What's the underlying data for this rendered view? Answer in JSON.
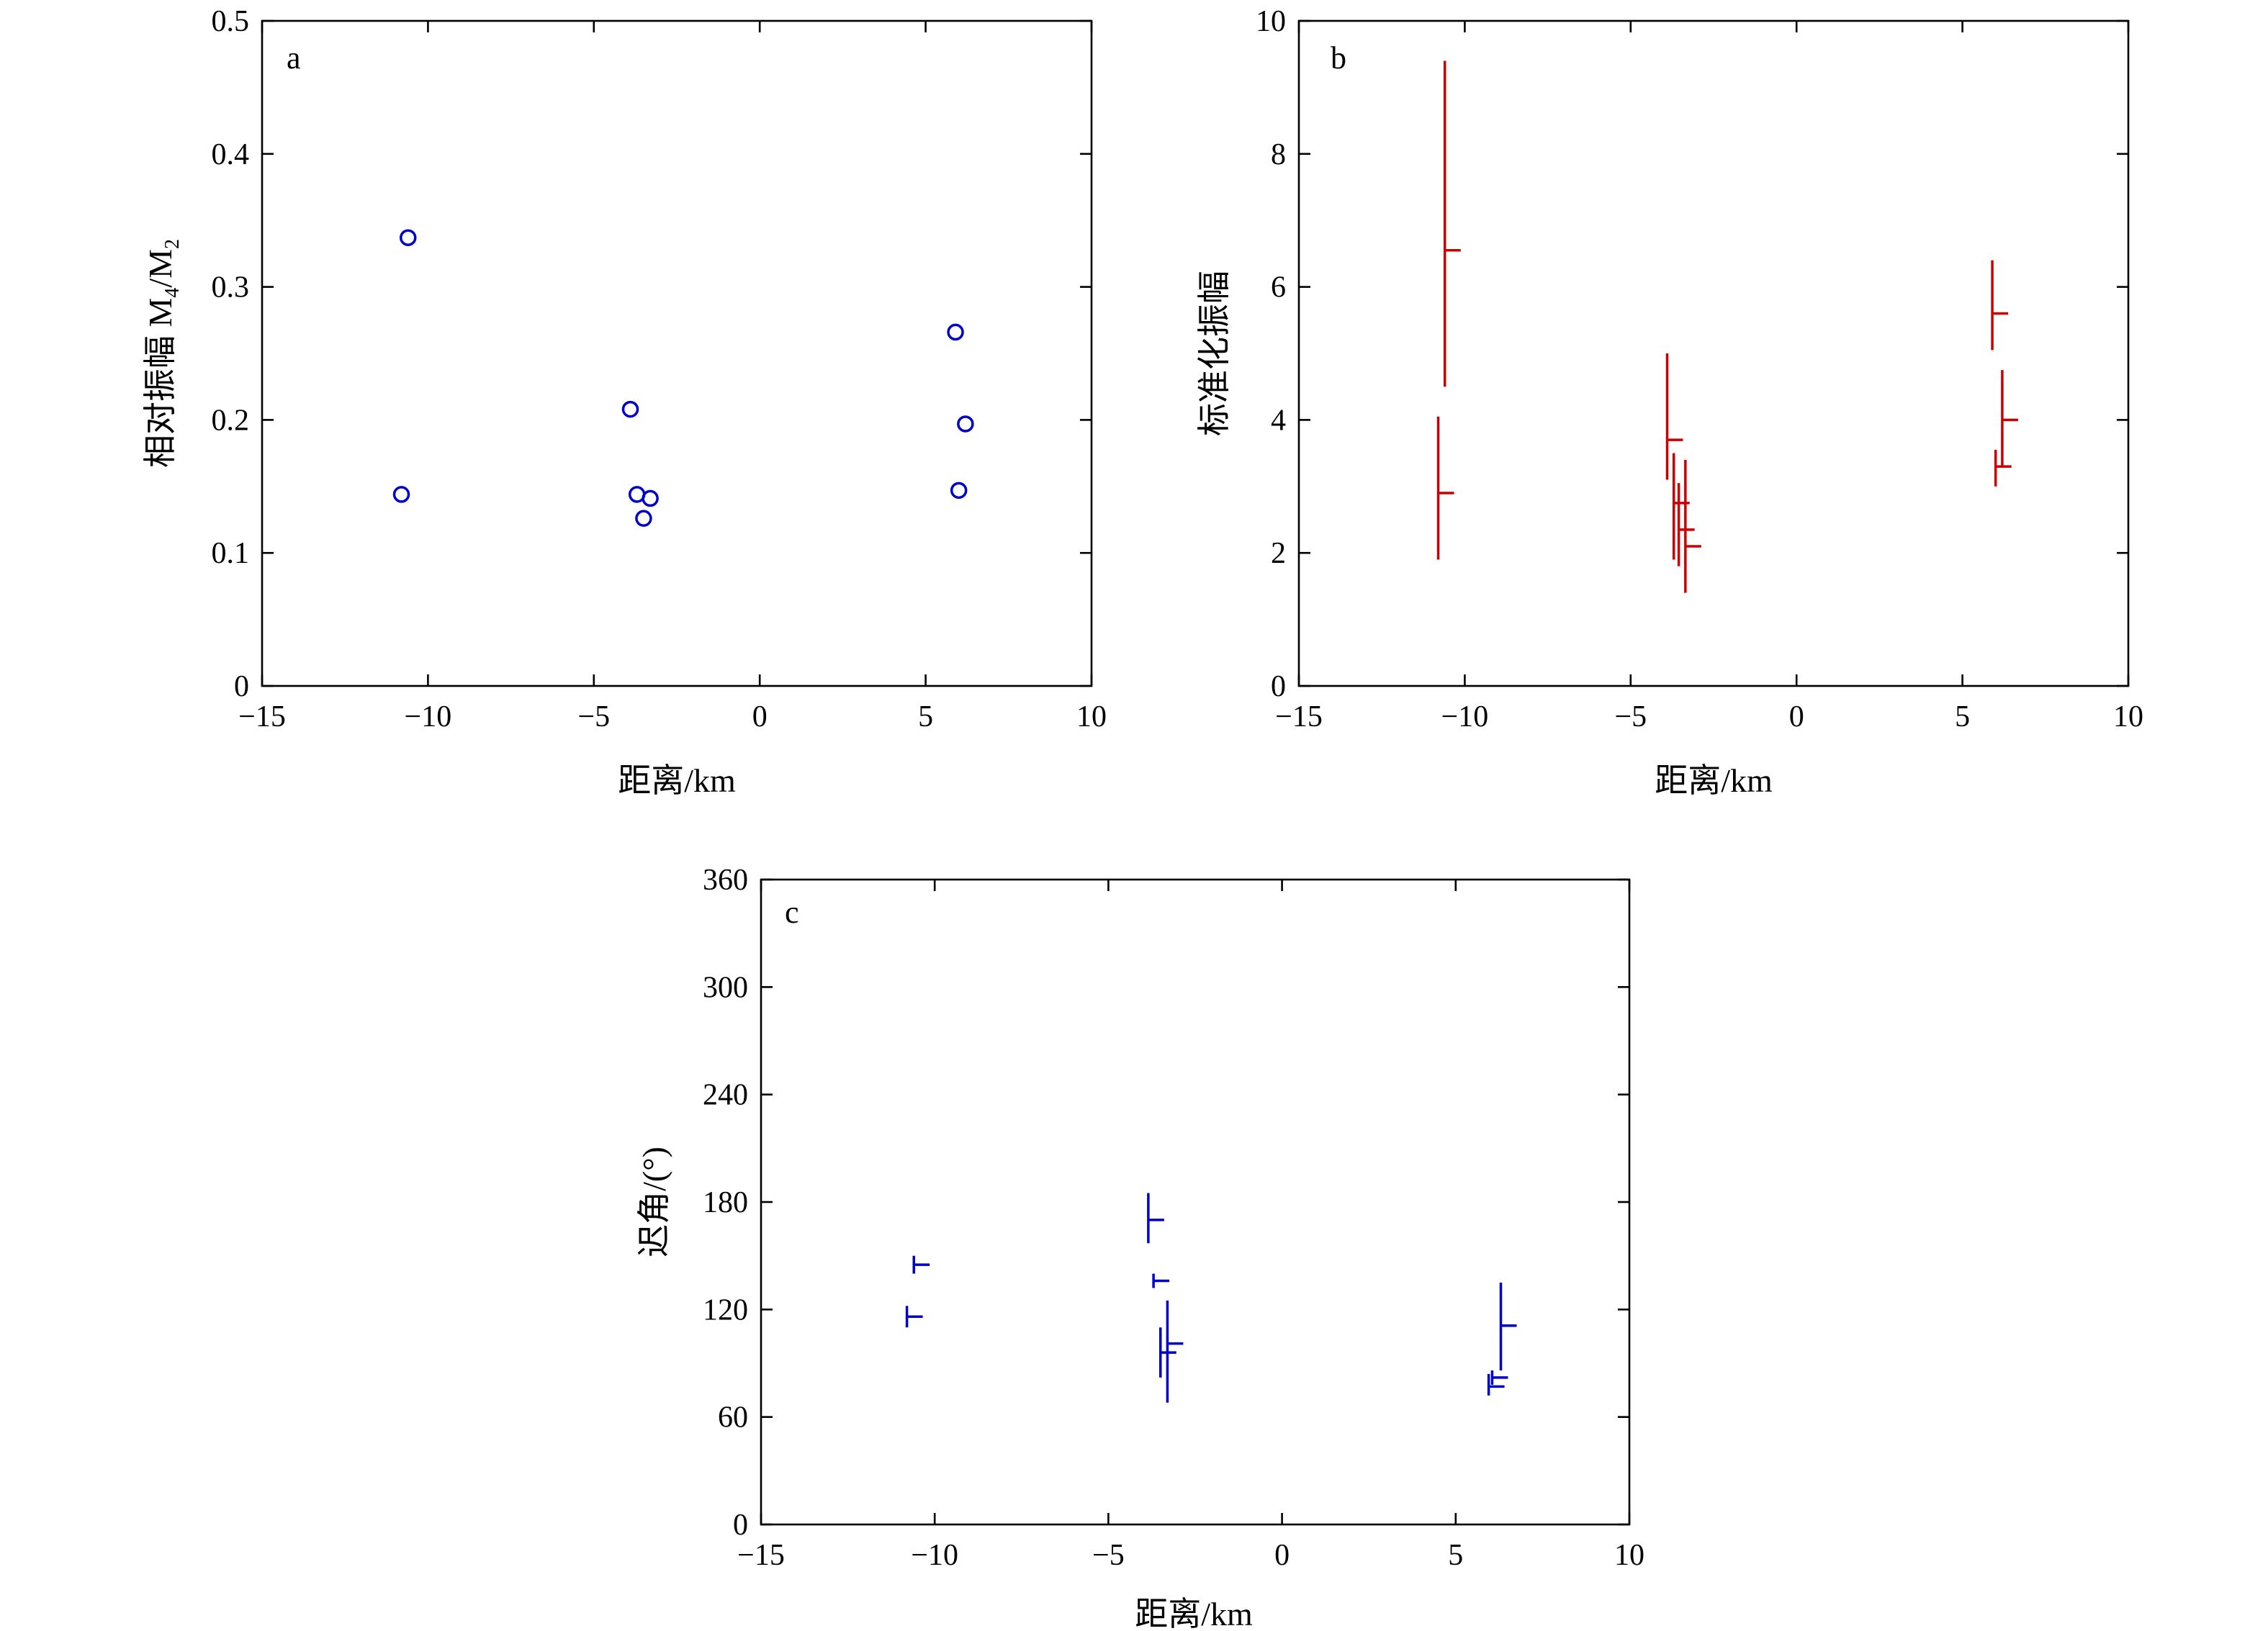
{
  "chart_data": [
    {
      "panel": "a",
      "type": "scatter",
      "xlabel": "距离/km",
      "ylabel_parts": [
        "相对振幅 M",
        "4",
        "/M",
        "2"
      ],
      "xlim": [
        -15,
        10
      ],
      "ylim": [
        0,
        0.5
      ],
      "xticks": [
        -15,
        -10,
        -5,
        0,
        5,
        10
      ],
      "xtick_labels": [
        "−15",
        "−10",
        "−5",
        "0",
        "5",
        "10"
      ],
      "yticks": [
        0,
        0.1,
        0.2,
        0.3,
        0.4,
        0.5
      ],
      "ytick_labels": [
        "0",
        "0.1",
        "0.2",
        "0.3",
        "0.4",
        "0.5"
      ],
      "marker": "circle",
      "color": "#0000cc",
      "points": [
        {
          "x": -10.6,
          "y": 0.337
        },
        {
          "x": -10.8,
          "y": 0.144
        },
        {
          "x": -3.9,
          "y": 0.208
        },
        {
          "x": -3.7,
          "y": 0.144
        },
        {
          "x": -3.3,
          "y": 0.141
        },
        {
          "x": -3.5,
          "y": 0.126
        },
        {
          "x": 5.9,
          "y": 0.266
        },
        {
          "x": 6.2,
          "y": 0.197
        },
        {
          "x": 6.0,
          "y": 0.147
        }
      ]
    },
    {
      "panel": "b",
      "type": "errorbar",
      "xlabel": "距离/km",
      "ylabel": "标准化振幅",
      "xlim": [
        -15,
        10
      ],
      "ylim": [
        0,
        10
      ],
      "xticks": [
        -15,
        -10,
        -5,
        0,
        5,
        10
      ],
      "xtick_labels": [
        "−15",
        "−10",
        "−5",
        "0",
        "5",
        "10"
      ],
      "yticks": [
        0,
        2,
        4,
        6,
        8,
        10
      ],
      "ytick_labels": [
        "0",
        "2",
        "4",
        "6",
        "8",
        "10"
      ],
      "color": "#cc0000",
      "points": [
        {
          "x": -10.6,
          "y": 6.55,
          "low": 4.5,
          "high": 9.4
        },
        {
          "x": -10.8,
          "y": 2.9,
          "low": 1.9,
          "high": 4.05
        },
        {
          "x": -3.9,
          "y": 3.7,
          "low": 3.1,
          "high": 5.0
        },
        {
          "x": -3.7,
          "y": 2.75,
          "low": 1.9,
          "high": 3.5
        },
        {
          "x": -3.55,
          "y": 2.35,
          "low": 1.8,
          "high": 3.05
        },
        {
          "x": -3.35,
          "y": 2.1,
          "low": 1.4,
          "high": 3.4
        },
        {
          "x": 5.9,
          "y": 5.6,
          "low": 5.05,
          "high": 6.4
        },
        {
          "x": 6.2,
          "y": 4.0,
          "low": 3.3,
          "high": 4.75
        },
        {
          "x": 6.0,
          "y": 3.3,
          "low": 3.0,
          "high": 3.55
        }
      ]
    },
    {
      "panel": "c",
      "type": "errorbar",
      "xlabel": "距离/km",
      "ylabel": "迟角/(°)",
      "xlim": [
        -15,
        10
      ],
      "ylim": [
        0,
        360
      ],
      "xticks": [
        -15,
        -10,
        -5,
        0,
        5,
        10
      ],
      "xtick_labels": [
        "−15",
        "−10",
        "−5",
        "0",
        "5",
        "10"
      ],
      "yticks": [
        0,
        60,
        120,
        180,
        240,
        300,
        360
      ],
      "ytick_labels": [
        "0",
        "60",
        "120",
        "180",
        "240",
        "300",
        "360"
      ],
      "color": "#0000cc",
      "points": [
        {
          "x": -10.6,
          "y": 145,
          "low": 140,
          "high": 150
        },
        {
          "x": -10.8,
          "y": 116,
          "low": 110,
          "high": 122
        },
        {
          "x": -3.85,
          "y": 170,
          "low": 157,
          "high": 185
        },
        {
          "x": -3.7,
          "y": 136,
          "low": 132,
          "high": 140
        },
        {
          "x": -3.5,
          "y": 96,
          "low": 82,
          "high": 110
        },
        {
          "x": -3.3,
          "y": 101,
          "low": 68,
          "high": 125
        },
        {
          "x": 6.3,
          "y": 111,
          "low": 86,
          "high": 135
        },
        {
          "x": 6.05,
          "y": 82,
          "low": 78,
          "high": 86
        },
        {
          "x": 5.95,
          "y": 77,
          "low": 72,
          "high": 84
        }
      ]
    }
  ]
}
